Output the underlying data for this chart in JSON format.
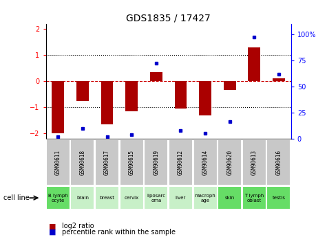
{
  "title": "GDS1835 / 17427",
  "samples": [
    "GSM90611",
    "GSM90618",
    "GSM90617",
    "GSM90615",
    "GSM90619",
    "GSM90612",
    "GSM90614",
    "GSM90620",
    "GSM90613",
    "GSM90616"
  ],
  "cell_lines": [
    "B lymph\nocyte",
    "brain",
    "breast",
    "cervix",
    "liposarc\noma",
    "liver",
    "macroph\nage",
    "skin",
    "T lymph\noblast",
    "testis"
  ],
  "log2_ratio": [
    -2.0,
    -0.75,
    -1.65,
    -1.15,
    0.35,
    -1.05,
    -1.3,
    -0.35,
    1.3,
    0.12
  ],
  "percentile_rank": [
    2,
    10,
    2,
    4,
    72,
    8,
    5,
    16,
    97,
    62
  ],
  "ylim": [
    -2.2,
    2.2
  ],
  "y2lim": [
    0,
    110
  ],
  "bar_color": "#aa0000",
  "dot_color": "#0000cc",
  "bg_color": "#ffffff",
  "grid_color": "#000000",
  "zero_line_color": "#cc0000",
  "y_ticks": [
    -2,
    -1,
    0,
    1,
    2
  ],
  "y2_ticks": [
    0,
    25,
    50,
    75,
    100
  ],
  "y2_tick_labels": [
    "0",
    "25",
    "50",
    "75",
    "100%"
  ],
  "sample_box_color": "#c8c8c8",
  "cell_line_color_light": "#c8f0c8",
  "cell_line_color_dark": "#66dd66",
  "dark_cells": [
    0,
    7,
    8,
    9
  ]
}
